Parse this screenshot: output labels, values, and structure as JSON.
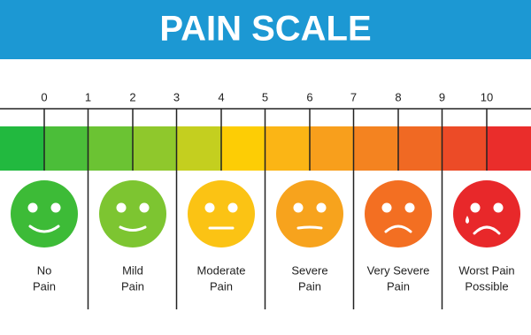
{
  "header": {
    "title": "PAIN SCALE"
  },
  "scale": {
    "ticks": [
      0,
      1,
      2,
      3,
      4,
      5,
      6,
      7,
      8,
      9,
      10
    ]
  },
  "faces": [
    {
      "label": [
        "No",
        "Pain"
      ]
    },
    {
      "label": [
        "Mild",
        "Pain"
      ]
    },
    {
      "label": [
        "Moderate",
        "Pain"
      ]
    },
    {
      "label": [
        "Severe",
        "Pain"
      ]
    },
    {
      "label": [
        "Very Severe",
        "Pain"
      ]
    },
    {
      "label": [
        "Worst Pain",
        "Possible"
      ]
    }
  ]
}
